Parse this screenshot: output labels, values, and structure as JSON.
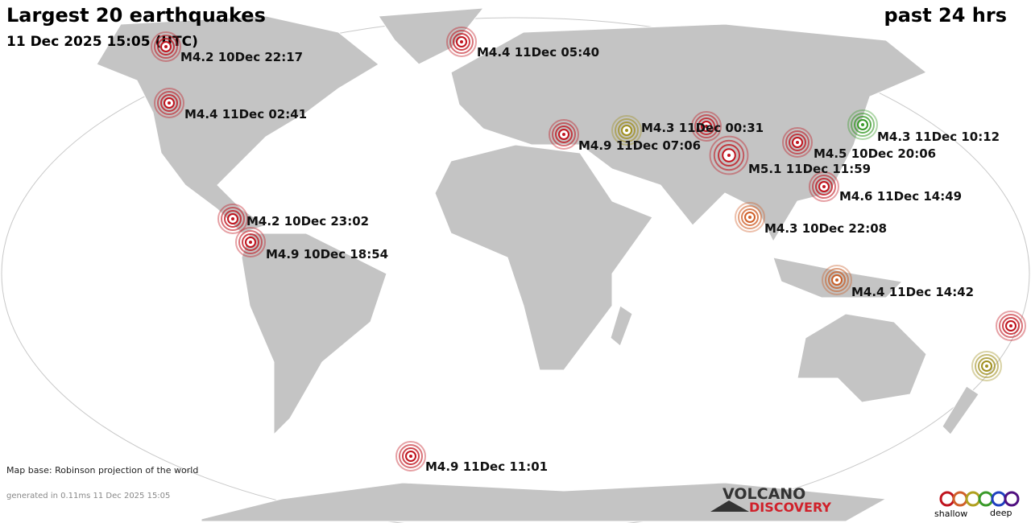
{
  "header": {
    "title": "Largest 20 earthquakes",
    "subtitle": "11 Dec 2025 15:05 (UTC)",
    "period": "past 24 hrs"
  },
  "quakes": [
    {
      "label": "M4.2 10Dec 22:17",
      "color": "#c0141e"
    },
    {
      "label": "M4.4 11Dec 05:40",
      "color": "#c0141e"
    },
    {
      "label": "M4.4 11Dec 02:41",
      "color": "#c0141e"
    },
    {
      "label": "M4.3 11Dec 00:31",
      "color": "#c0141e"
    },
    {
      "label": "M4.9 11Dec 07:06",
      "color": "#c0141e"
    },
    {
      "label": "M5.1 11Dec 11:59",
      "color": "#c0141e"
    },
    {
      "label": "M4.5 10Dec 20:06",
      "color": "#c0141e"
    },
    {
      "label": "M4.3 11Dec 10:12",
      "color": "#3a9a2a"
    },
    {
      "label": "M4.6 11Dec 14:49",
      "color": "#c0141e"
    },
    {
      "label": "M4.3 10Dec 22:08",
      "color": "#d0602a"
    },
    {
      "label": "M4.2 10Dec 23:02",
      "color": "#c0141e"
    },
    {
      "label": "M4.9 10Dec 18:54",
      "color": "#c0141e"
    },
    {
      "label": "M4.4 11Dec 14:42",
      "color": "#c8602a"
    },
    {
      "label": "M4.9 11Dec 11:01",
      "color": "#c0141e"
    }
  ],
  "footer": {
    "map_base": "Map base: Robinson projection of the world",
    "generated": "generated in 0.11ms 11 Dec 2025 15:05",
    "brand_top": "VOLCANO",
    "brand_bottom": "DISCOVERY",
    "legend_shallow": "shallow",
    "legend_deep": "deep"
  }
}
